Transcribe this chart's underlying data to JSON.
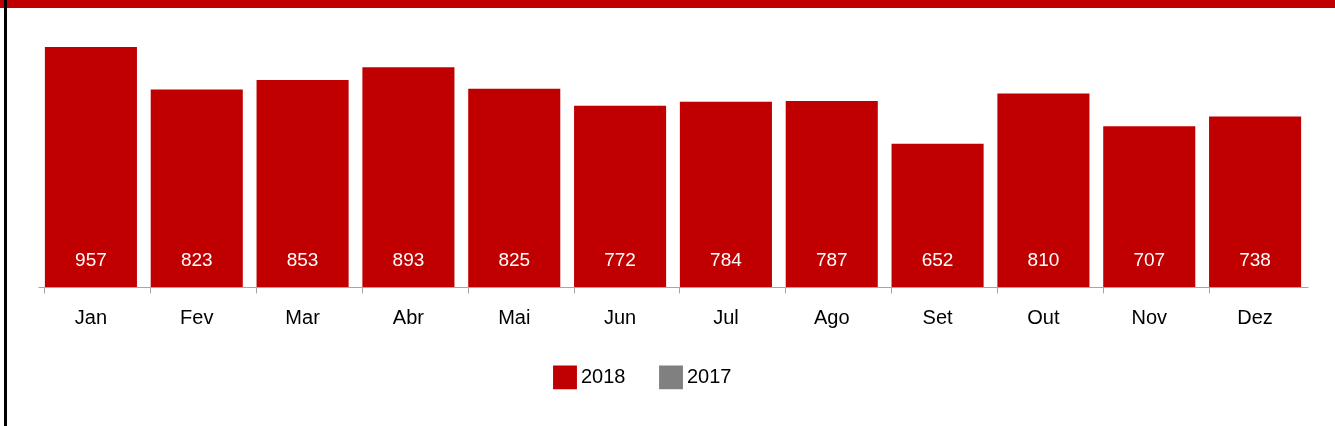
{
  "chart_data": {
    "type": "bar",
    "categories": [
      "Jan",
      "Fev",
      "Mar",
      "Abr",
      "Mai",
      "Jun",
      "Jul",
      "Ago",
      "Set",
      "Out",
      "Nov",
      "Dez"
    ],
    "series": [
      {
        "name": "2018",
        "type": "bar",
        "color": "#c00000",
        "values": [
          957,
          823,
          853,
          893,
          825,
          772,
          784,
          787,
          652,
          810,
          707,
          738
        ]
      },
      {
        "name": "2017",
        "type": "line",
        "color": "#808080",
        "values": [
          null,
          null,
          null,
          null,
          null,
          null,
          null,
          null,
          null,
          null,
          null,
          null
        ]
      }
    ],
    "ylim": [
      200,
      957
    ],
    "data_labels": true,
    "legend": "bottom",
    "grid": false
  }
}
